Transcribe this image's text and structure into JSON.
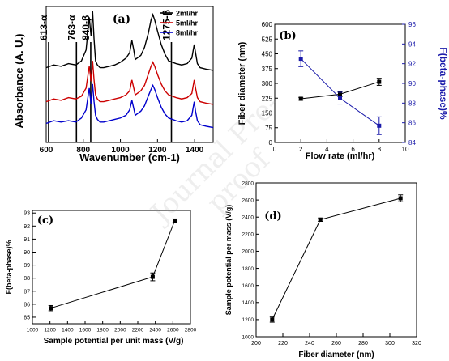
{
  "watermark": "Journal Pre-proof",
  "chart_data": [
    {
      "panel": "(a)",
      "type": "line",
      "xlabel": "Wavenumber (cm-1)",
      "ylabel": "Absorbance (A. U.)",
      "xlim": [
        600,
        1500
      ],
      "xticks": [
        600,
        800,
        1000,
        1200,
        1400
      ],
      "y_ticks_shown": false,
      "legend_position": "top-right",
      "peak_markers": [
        {
          "x": 613,
          "label": "613-α"
        },
        {
          "x": 763,
          "label": "763-α"
        },
        {
          "x": 840,
          "label": "840-β"
        },
        {
          "x": 1275,
          "label": "1275-β"
        }
      ],
      "series": [
        {
          "name": "2ml/hr",
          "color": "#000000",
          "x": [
            600,
            640,
            680,
            720,
            760,
            790,
            815,
            832,
            842,
            850,
            858,
            866,
            876,
            890,
            910,
            940,
            970,
            1000,
            1030,
            1050,
            1062,
            1072,
            1080,
            1090,
            1110,
            1130,
            1150,
            1165,
            1175,
            1185,
            1200,
            1220,
            1240,
            1260,
            1280,
            1300,
            1330,
            1360,
            1385,
            1398,
            1405,
            1415,
            1430,
            1460,
            1500
          ],
          "y": [
            0.55,
            0.57,
            0.56,
            0.58,
            0.57,
            0.6,
            0.68,
            0.92,
            0.78,
            0.97,
            0.76,
            0.6,
            0.57,
            0.55,
            0.55,
            0.56,
            0.57,
            0.59,
            0.62,
            0.66,
            0.75,
            0.68,
            0.61,
            0.62,
            0.64,
            0.7,
            0.8,
            0.9,
            0.94,
            0.9,
            0.82,
            0.72,
            0.65,
            0.6,
            0.59,
            0.58,
            0.57,
            0.58,
            0.62,
            0.72,
            0.66,
            0.58,
            0.55,
            0.54,
            0.53
          ]
        },
        {
          "name": "5ml/hr",
          "color": "#cc0000",
          "x": [
            600,
            640,
            680,
            720,
            760,
            790,
            815,
            832,
            842,
            850,
            858,
            866,
            876,
            890,
            910,
            940,
            970,
            1000,
            1030,
            1050,
            1062,
            1072,
            1080,
            1090,
            1110,
            1130,
            1150,
            1165,
            1175,
            1185,
            1200,
            1220,
            1240,
            1260,
            1280,
            1300,
            1330,
            1360,
            1385,
            1398,
            1405,
            1415,
            1430,
            1460,
            1500
          ],
          "y": [
            0.3,
            0.32,
            0.31,
            0.33,
            0.32,
            0.34,
            0.4,
            0.56,
            0.45,
            0.6,
            0.46,
            0.35,
            0.32,
            0.3,
            0.3,
            0.31,
            0.32,
            0.33,
            0.35,
            0.38,
            0.46,
            0.4,
            0.35,
            0.36,
            0.38,
            0.42,
            0.5,
            0.56,
            0.59,
            0.56,
            0.5,
            0.43,
            0.38,
            0.35,
            0.34,
            0.33,
            0.32,
            0.33,
            0.36,
            0.46,
            0.4,
            0.33,
            0.3,
            0.29,
            0.28
          ]
        },
        {
          "name": "8ml/hr",
          "color": "#0000cc",
          "x": [
            600,
            640,
            680,
            720,
            760,
            790,
            815,
            832,
            842,
            850,
            858,
            866,
            876,
            890,
            910,
            940,
            970,
            1000,
            1030,
            1050,
            1062,
            1072,
            1080,
            1090,
            1110,
            1130,
            1150,
            1165,
            1175,
            1185,
            1200,
            1220,
            1240,
            1260,
            1280,
            1300,
            1330,
            1360,
            1385,
            1398,
            1405,
            1415,
            1430,
            1460,
            1500
          ],
          "y": [
            0.14,
            0.16,
            0.15,
            0.16,
            0.15,
            0.18,
            0.24,
            0.4,
            0.28,
            0.43,
            0.3,
            0.2,
            0.17,
            0.15,
            0.15,
            0.16,
            0.17,
            0.18,
            0.2,
            0.24,
            0.31,
            0.25,
            0.2,
            0.21,
            0.23,
            0.27,
            0.34,
            0.39,
            0.42,
            0.39,
            0.33,
            0.26,
            0.21,
            0.18,
            0.17,
            0.16,
            0.15,
            0.16,
            0.2,
            0.3,
            0.23,
            0.16,
            0.13,
            0.12,
            0.11
          ]
        }
      ]
    },
    {
      "panel": "(b)",
      "type": "line",
      "xlabel": "Flow rate (ml/hr)",
      "ylabel_left": "Fiber diameter (nm)",
      "ylabel_right": "F(beta-phase)%",
      "xlim": [
        0,
        10
      ],
      "xticks": [
        0,
        2,
        4,
        6,
        8,
        10
      ],
      "ylim_left": [
        0,
        600
      ],
      "yticks_left": [
        0,
        75,
        150,
        225,
        300,
        375,
        450,
        525,
        600
      ],
      "ylim_right": [
        84,
        96
      ],
      "yticks_right": [
        84,
        86,
        88,
        90,
        92,
        94,
        96
      ],
      "right_axis_color": "#1a1aaa",
      "series": [
        {
          "axis": "left",
          "color": "#000000",
          "x": [
            2,
            5,
            8
          ],
          "y": [
            222,
            245,
            308
          ],
          "err": [
            7,
            12,
            18
          ]
        },
        {
          "axis": "right",
          "color": "#1a1aaa",
          "x": [
            2,
            5,
            8
          ],
          "y": [
            92.5,
            88.5,
            85.7
          ],
          "err": [
            0.8,
            0.6,
            0.9
          ]
        }
      ]
    },
    {
      "panel": "(c)",
      "type": "line",
      "xlabel": "Sample potential per unit mass (V/g)",
      "ylabel": "F(beta-phase)%",
      "xlim": [
        1000,
        2800
      ],
      "xticks": [
        1000,
        1200,
        1400,
        1600,
        1800,
        2000,
        2200,
        2400,
        2600,
        2800
      ],
      "ylim": [
        84.5,
        93.2
      ],
      "yticks": [
        85,
        86,
        87,
        88,
        89,
        90,
        91,
        92,
        93
      ],
      "series": [
        {
          "color": "#000000",
          "x": [
            1210,
            2370,
            2620
          ],
          "y": [
            85.7,
            88.1,
            92.4
          ],
          "err": [
            0.2,
            0.3,
            0.15
          ]
        }
      ]
    },
    {
      "panel": "(d)",
      "type": "line",
      "xlabel": "Fiber diameter (nm)",
      "ylabel": "Sample potential per mass (V/g)",
      "xlim": [
        200,
        320
      ],
      "xticks": [
        200,
        220,
        240,
        260,
        280,
        300,
        320
      ],
      "ylim": [
        1000,
        2800
      ],
      "yticks": [
        1000,
        1200,
        1400,
        1600,
        1800,
        2000,
        2200,
        2400,
        2600,
        2800
      ],
      "series": [
        {
          "color": "#000000",
          "x": [
            212,
            248,
            308
          ],
          "y": [
            1200,
            2370,
            2620
          ],
          "err": [
            30,
            20,
            40
          ]
        }
      ]
    }
  ]
}
